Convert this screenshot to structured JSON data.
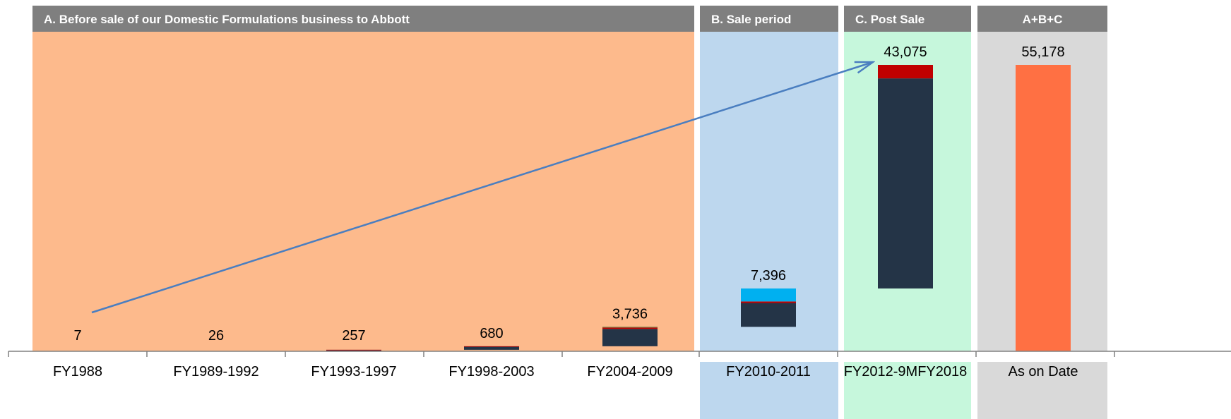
{
  "chart_data": {
    "type": "bar",
    "sections": [
      {
        "label": "A. Before sale of our Domestic Formulations business to Abbott",
        "background": "#FDBA8C",
        "header_color": "#7F7F7F"
      },
      {
        "label": "B. Sale period",
        "background": "#BDD7EE",
        "header_color": "#7F7F7F"
      },
      {
        "label": "C. Post Sale",
        "background": "#C6F7DC",
        "header_color": "#7F7F7F"
      },
      {
        "label": "A+B+C",
        "background": "#D9D9D9",
        "header_color": "#7F7F7F"
      }
    ],
    "categories": [
      "FY1988",
      "FY1989-1992",
      "FY1993-1997",
      "FY1998-2003",
      "FY2004-2009",
      "FY2010-2011",
      "FY2012-9MFY2018",
      "As on Date"
    ],
    "totals": [
      "7",
      "26",
      "257",
      "680",
      "3,736",
      "7,396",
      "43,075",
      "55,178"
    ],
    "waterfall": {
      "section_of_category": [
        0,
        0,
        0,
        0,
        0,
        1,
        2,
        3
      ],
      "cumulative_before": [
        0,
        7,
        33,
        290,
        970,
        4706,
        12102,
        0
      ],
      "segments": [
        [],
        [],
        [
          {
            "value": 250,
            "color": "#243447"
          },
          {
            "value": 7,
            "color": "#C00000"
          }
        ],
        [
          {
            "value": 600,
            "color": "#243447"
          },
          {
            "value": 80,
            "color": "#C00000"
          }
        ],
        [
          {
            "value": 3350,
            "color": "#243447"
          },
          {
            "value": 260,
            "color": "#C00000"
          },
          {
            "value": 126,
            "color": "#4E8542"
          }
        ],
        [
          {
            "value": 4600,
            "color": "#243447"
          },
          {
            "value": 296,
            "color": "#C00000"
          },
          {
            "value": 2500,
            "color": "#00B0F0"
          }
        ],
        [
          {
            "value": 40475,
            "color": "#243447"
          },
          {
            "value": 2600,
            "color": "#C00000"
          }
        ],
        [
          {
            "value": 55178,
            "color": "#FF7043"
          }
        ]
      ]
    },
    "ylim": [
      0,
      55178
    ],
    "arrow_color": "#4A7EC0",
    "axis_color": "#808080",
    "title": "",
    "xlabel": "",
    "ylabel": "",
    "grid": false,
    "legend": "none"
  }
}
